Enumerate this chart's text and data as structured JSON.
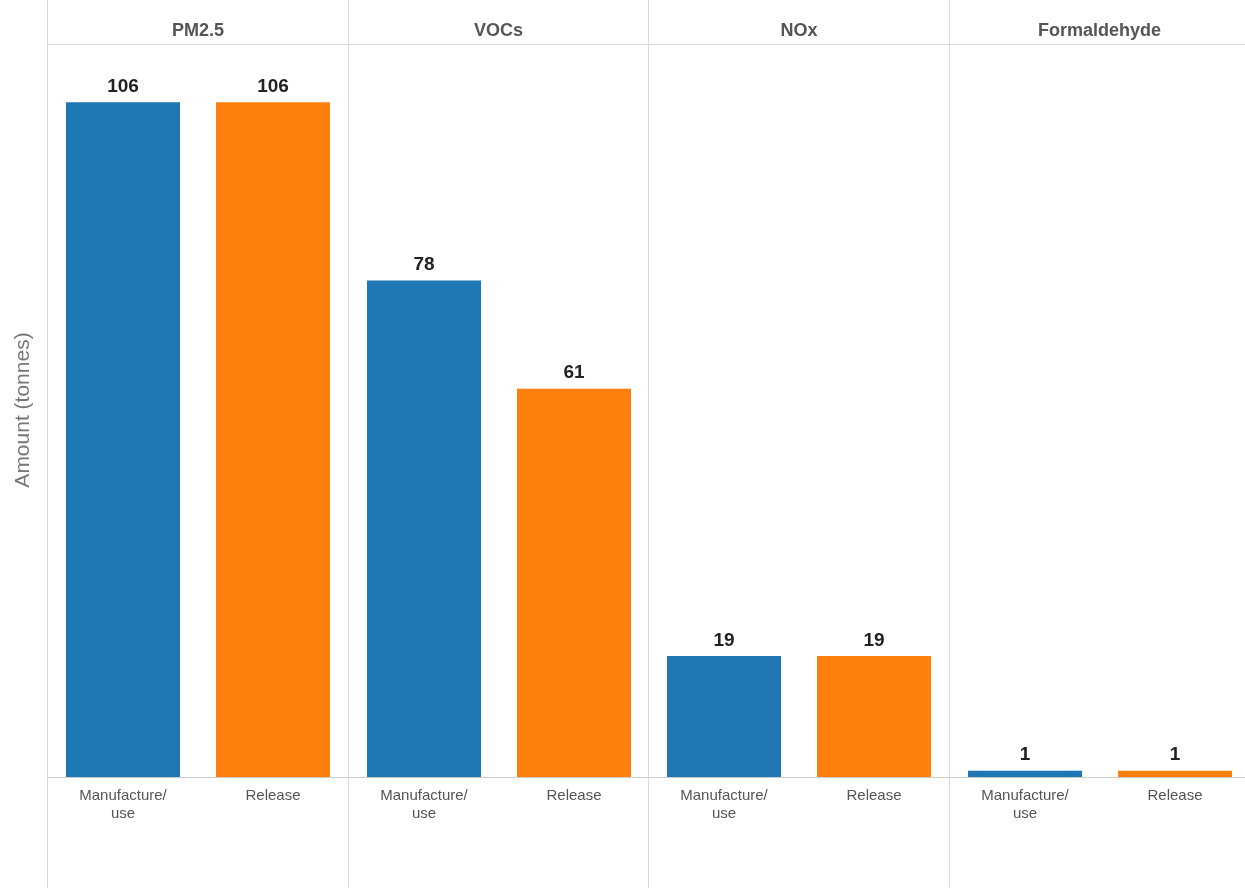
{
  "chart_data": [
    {
      "type": "bar",
      "title": "PM2.5",
      "ylabel": "Amount (tonnes)",
      "categories": [
        "Manufacture/use",
        "Release"
      ],
      "values": [
        106,
        106
      ],
      "colors": [
        "#1f77b4",
        "#ff7f0e"
      ],
      "ylim": [
        0,
        115
      ],
      "data_labels": true,
      "grid": false,
      "legend": false,
      "tick_labels": "x"
    },
    {
      "type": "bar",
      "title": "VOCs",
      "categories": [
        "Manufacture/use",
        "Release"
      ],
      "values": [
        78,
        61
      ],
      "colors": [
        "#1f77b4",
        "#ff7f0e"
      ],
      "ylim": [
        0,
        115
      ],
      "data_labels": true,
      "grid": false,
      "legend": false,
      "tick_labels": "x"
    },
    {
      "type": "bar",
      "title": "NOx",
      "categories": [
        "Manufacture/use",
        "Release"
      ],
      "values": [
        19,
        19
      ],
      "colors": [
        "#1f77b4",
        "#ff7f0e"
      ],
      "ylim": [
        0,
        115
      ],
      "data_labels": true,
      "grid": false,
      "legend": false,
      "tick_labels": "x"
    },
    {
      "type": "bar",
      "title": "Formaldehyde",
      "categories": [
        "Manufacture/use",
        "Release"
      ],
      "values": [
        1,
        1
      ],
      "colors": [
        "#1f77b4",
        "#ff7f0e"
      ],
      "ylim": [
        0,
        115
      ],
      "data_labels": true,
      "grid": false,
      "legend": false,
      "tick_labels": "x"
    }
  ]
}
